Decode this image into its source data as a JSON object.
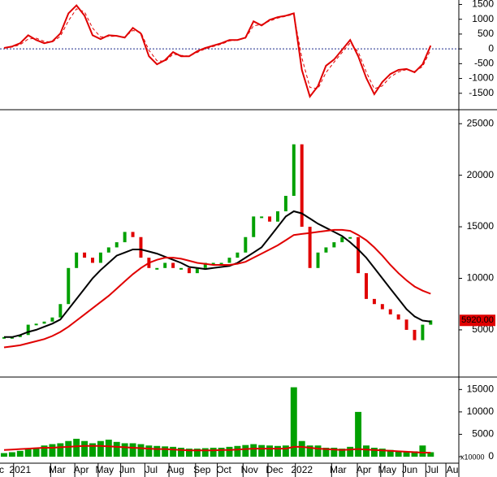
{
  "chart_data": [
    {
      "type": "line",
      "x": [
        0,
        1,
        2,
        3,
        4,
        5,
        6,
        7,
        8,
        9,
        10,
        11,
        12,
        13,
        14,
        15,
        16,
        17,
        18,
        19,
        20,
        21,
        22,
        23,
        24,
        25,
        26,
        27,
        28,
        29,
        30,
        31,
        32,
        33,
        34,
        35,
        36,
        37,
        38,
        39,
        40,
        41,
        42,
        43,
        44,
        45,
        46,
        47,
        48,
        49,
        50,
        51,
        52,
        53
      ],
      "xlim": [
        -0.5,
        56.5
      ],
      "ylim": [
        -2000,
        1650
      ],
      "yticks": [
        1500,
        1000,
        500,
        0,
        -500,
        -1000,
        -1500
      ],
      "series": [
        {
          "name": "MACD",
          "color": "#e00000",
          "style": "line",
          "values": [
            30,
            80,
            190,
            460,
            300,
            190,
            250,
            520,
            1200,
            1470,
            1120,
            460,
            330,
            460,
            440,
            380,
            710,
            520,
            -250,
            -520,
            -380,
            -110,
            -250,
            -250,
            -80,
            30,
            110,
            190,
            300,
            300,
            380,
            930,
            790,
            980,
            1070,
            1120,
            1200,
            -710,
            -1610,
            -1260,
            -570,
            -360,
            -30,
            300,
            -250,
            -980,
            -1530,
            -1120,
            -850,
            -710,
            -680,
            -790,
            -520,
            110
          ]
        },
        {
          "name": "Signal",
          "color": "#e00000",
          "style": "dashed",
          "values": [
            20,
            60,
            140,
            330,
            360,
            250,
            230,
            420,
            950,
            1350,
            1250,
            700,
            400,
            420,
            430,
            400,
            620,
            560,
            -50,
            -400,
            -420,
            -180,
            -220,
            -250,
            -120,
            0,
            80,
            160,
            270,
            300,
            360,
            780,
            820,
            940,
            1040,
            1100,
            1170,
            -300,
            -1300,
            -1350,
            -800,
            -450,
            -120,
            200,
            -100,
            -780,
            -1350,
            -1250,
            -950,
            -780,
            -700,
            -760,
            -600,
            -30
          ]
        }
      ]
    },
    {
      "type": "price",
      "x": [
        0,
        1,
        2,
        3,
        4,
        5,
        6,
        7,
        8,
        9,
        10,
        11,
        12,
        13,
        14,
        15,
        16,
        17,
        18,
        19,
        20,
        21,
        22,
        23,
        24,
        25,
        26,
        27,
        28,
        29,
        30,
        31,
        32,
        33,
        34,
        35,
        36,
        37,
        38,
        39,
        40,
        41,
        42,
        43,
        44,
        45,
        46,
        47,
        48,
        49,
        50,
        51,
        52,
        53
      ],
      "xlim": [
        -0.5,
        56.5
      ],
      "ylim": [
        500,
        26200
      ],
      "yticks": [
        25000,
        20000,
        15000,
        10000,
        5000
      ],
      "last_price_label": "5920.00",
      "series": [
        {
          "name": "Close",
          "color": "#00a000",
          "down_color": "#e00000",
          "style": "candle",
          "values": [
            4300,
            4300,
            4500,
            5500,
            5600,
            5800,
            6200,
            7500,
            11000,
            12500,
            12000,
            11500,
            12500,
            13000,
            13500,
            14500,
            14000,
            12000,
            11000,
            11000,
            11500,
            11000,
            11000,
            10500,
            11000,
            11500,
            11500,
            11500,
            12000,
            12500,
            14000,
            16000,
            16000,
            15500,
            16500,
            18000,
            23000,
            15000,
            11000,
            12500,
            13000,
            13500,
            14000,
            14000,
            10500,
            8000,
            7500,
            7000,
            6500,
            6000,
            5000,
            4000,
            5500,
            5920
          ]
        },
        {
          "name": "MA fast",
          "color": "#000000",
          "style": "line",
          "values": [
            4300,
            4300,
            4500,
            4800,
            5000,
            5300,
            5600,
            6000,
            7000,
            8000,
            9000,
            10000,
            10800,
            11500,
            12200,
            12500,
            12800,
            12800,
            12600,
            12400,
            12100,
            11800,
            11500,
            11100,
            11000,
            10900,
            11000,
            11100,
            11200,
            11500,
            12000,
            12500,
            13000,
            14000,
            15000,
            16000,
            16500,
            16300,
            15800,
            15300,
            14900,
            14500,
            14100,
            13500,
            12800,
            12000,
            11000,
            10000,
            9000,
            8000,
            7000,
            6300,
            5900,
            5800
          ]
        },
        {
          "name": "MA slow",
          "color": "#e00000",
          "style": "line",
          "values": [
            3300,
            3400,
            3500,
            3700,
            3900,
            4100,
            4400,
            4800,
            5300,
            5900,
            6500,
            7100,
            7700,
            8300,
            9000,
            9700,
            10400,
            11000,
            11500,
            11800,
            12000,
            12000,
            11900,
            11700,
            11500,
            11400,
            11300,
            11300,
            11300,
            11400,
            11600,
            12000,
            12400,
            12800,
            13200,
            13700,
            14200,
            14300,
            14400,
            14500,
            14600,
            14700,
            14700,
            14600,
            14200,
            13700,
            13000,
            12200,
            11300,
            10500,
            9800,
            9200,
            8800,
            8500
          ]
        }
      ]
    },
    {
      "type": "bar",
      "x": [
        0,
        1,
        2,
        3,
        4,
        5,
        6,
        7,
        8,
        9,
        10,
        11,
        12,
        13,
        14,
        15,
        16,
        17,
        18,
        19,
        20,
        21,
        22,
        23,
        24,
        25,
        26,
        27,
        28,
        29,
        30,
        31,
        32,
        33,
        34,
        35,
        36,
        37,
        38,
        39,
        40,
        41,
        42,
        43,
        44,
        45,
        46,
        47,
        48,
        49,
        50,
        51,
        52,
        53
      ],
      "xlim": [
        -0.5,
        56.5
      ],
      "ylim": [
        -1450,
        17600
      ],
      "yticks": [
        15000,
        10000,
        5000,
        0
      ],
      "unit_label": "x10000",
      "xticks": [
        {
          "value": -0.3,
          "label": "c"
        },
        {
          "value": 2.0,
          "label": "2021"
        },
        {
          "value": 6.6,
          "label": "Mar"
        },
        {
          "value": 9.6,
          "label": "Apr"
        },
        {
          "value": 12.5,
          "label": "May"
        },
        {
          "value": 15.3,
          "label": "Jun"
        },
        {
          "value": 18.3,
          "label": "Jul"
        },
        {
          "value": 21.3,
          "label": "Aug"
        },
        {
          "value": 24.6,
          "label": "Sep"
        },
        {
          "value": 27.3,
          "label": "Oct"
        },
        {
          "value": 30.5,
          "label": "Nov"
        },
        {
          "value": 33.6,
          "label": "Dec"
        },
        {
          "value": 37.0,
          "label": "2022"
        },
        {
          "value": 41.5,
          "label": "Mar"
        },
        {
          "value": 44.7,
          "label": "Apr"
        },
        {
          "value": 47.6,
          "label": "May"
        },
        {
          "value": 50.4,
          "label": "Jun"
        },
        {
          "value": 53.2,
          "label": "Jul"
        },
        {
          "value": 55.7,
          "label": "Au"
        }
      ],
      "series": [
        {
          "name": "Volume",
          "color": "#00a000",
          "style": "bar",
          "values": [
            800,
            1000,
            1300,
            1800,
            2000,
            2500,
            2800,
            3000,
            3500,
            4000,
            3500,
            3000,
            3500,
            3800,
            3300,
            3000,
            3000,
            2800,
            2500,
            2400,
            2300,
            2200,
            2000,
            1800,
            1800,
            1900,
            2000,
            2000,
            2200,
            2400,
            2600,
            2800,
            2600,
            2500,
            2400,
            2500,
            15500,
            3500,
            2500,
            2500,
            2000,
            2000,
            1800,
            2200,
            10000,
            2500,
            2000,
            1800,
            1500,
            1200,
            1000,
            1200,
            2500,
            1000
          ]
        },
        {
          "name": "Volume MA",
          "color": "#e00000",
          "style": "line",
          "values": [
            1500,
            1600,
            1700,
            1800,
            1900,
            2000,
            2000,
            2100,
            2200,
            2300,
            2400,
            2400,
            2400,
            2300,
            2200,
            2100,
            2000,
            1900,
            1800,
            1700,
            1700,
            1600,
            1500,
            1400,
            1400,
            1400,
            1400,
            1500,
            1500,
            1600,
            1700,
            1800,
            1800,
            1800,
            1800,
            1800,
            2200,
            2200,
            2000,
            1800,
            1700,
            1600,
            1500,
            1600,
            1700,
            1600,
            1500,
            1400,
            1300,
            1200,
            1100,
            1000,
            900,
            900
          ]
        }
      ]
    }
  ]
}
